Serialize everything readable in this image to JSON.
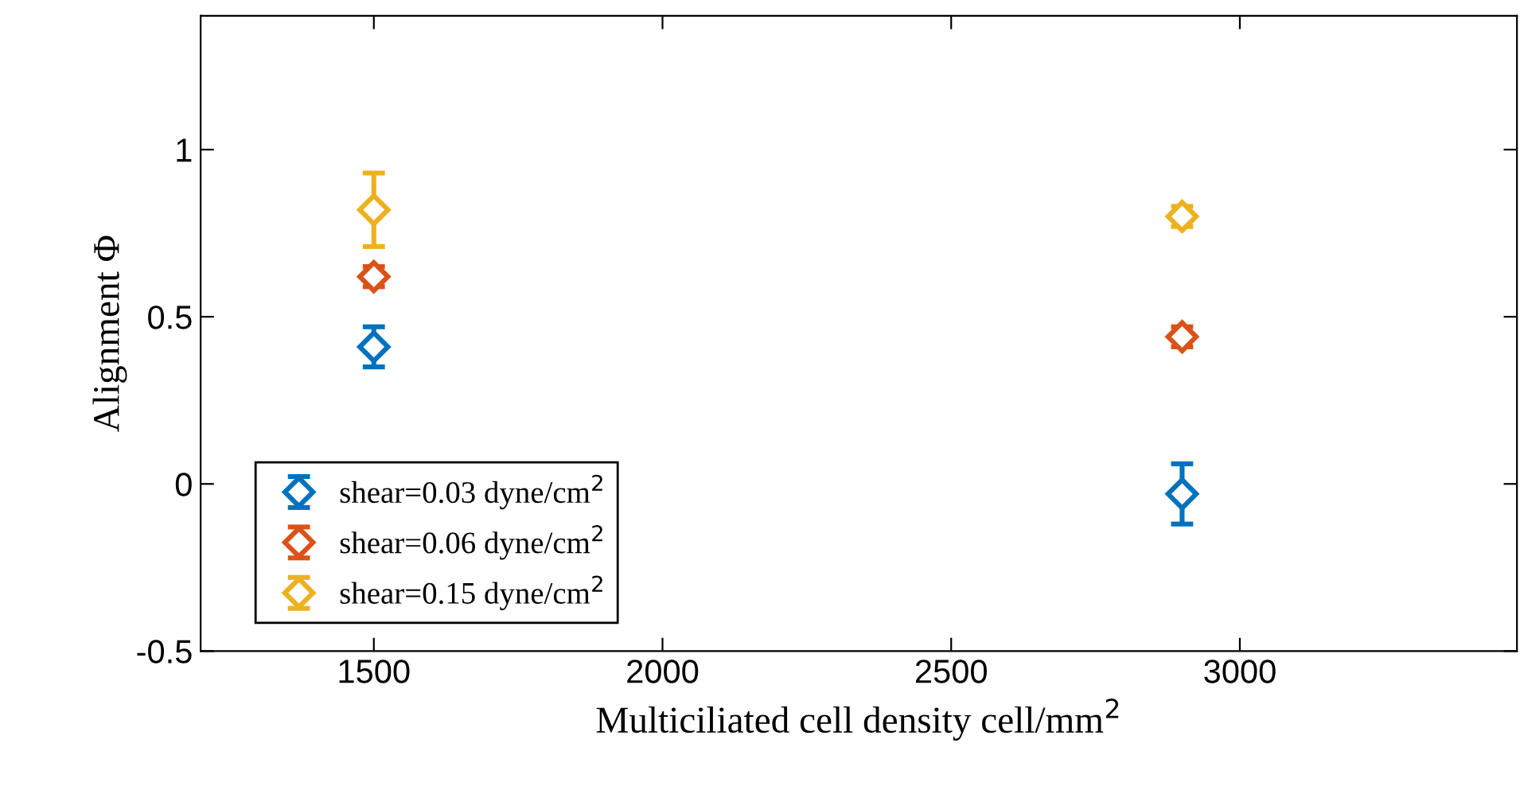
{
  "chart_data": {
    "type": "scatter",
    "xlabel": "Multiciliated cell density cell/mm$^{2}$",
    "ylabel": "Alignment Φ",
    "x": [
      1500,
      2900
    ],
    "series": [
      {
        "name": "shear=0.03 dyne/cm$^{2}$",
        "color": "#0072bd",
        "values": [
          0.41,
          -0.03
        ],
        "errors": [
          0.06,
          0.09
        ]
      },
      {
        "name": "shear=0.06 dyne/cm$^{2}$",
        "color": "#d95319",
        "values": [
          0.62,
          0.44
        ],
        "errors": [
          0.03,
          0.03
        ]
      },
      {
        "name": "shear=0.15 dyne/cm$^{2}$",
        "color": "#edb120",
        "values": [
          0.82,
          0.8
        ],
        "errors": [
          0.11,
          0.03
        ]
      }
    ],
    "xlim": [
      1200,
      3480
    ],
    "xticks": [
      1500,
      2000,
      2500,
      3000
    ],
    "ylim": [
      -0.5,
      1.4
    ],
    "yticks": [
      -0.5,
      0,
      0.5,
      1
    ],
    "marker": "diamond",
    "grid": false,
    "legend": "bottom left"
  }
}
